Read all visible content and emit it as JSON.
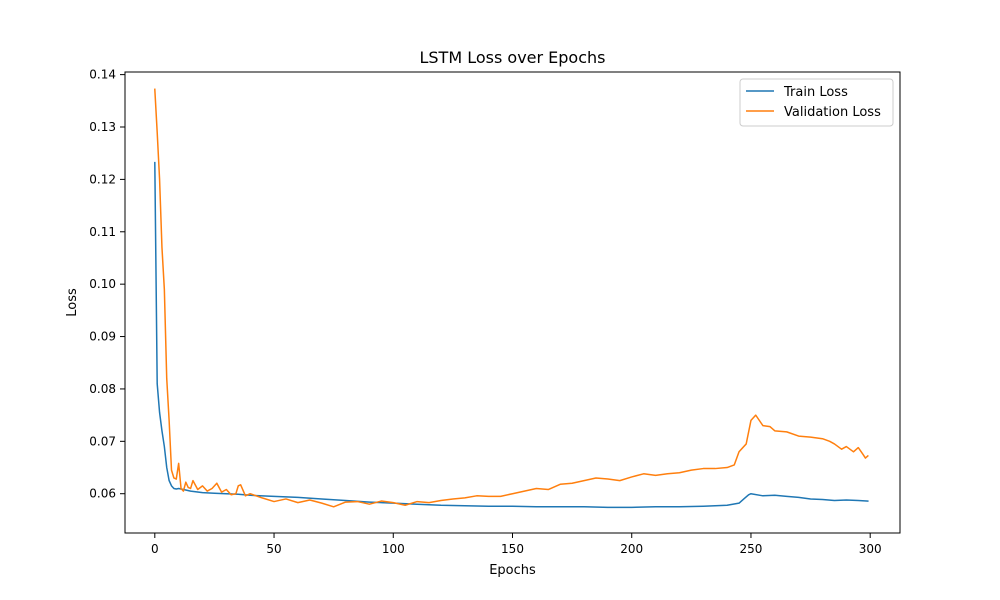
{
  "chart_data": {
    "type": "line",
    "title": "LSTM Loss over Epochs",
    "xlabel": "Epochs",
    "ylabel": "Loss",
    "xlim": [
      -12.5,
      312.5
    ],
    "ylim": [
      0.0525,
      0.1405
    ],
    "xticks": [
      0,
      50,
      100,
      150,
      200,
      250,
      300
    ],
    "yticks": [
      0.06,
      0.07,
      0.08,
      0.09,
      0.1,
      0.11,
      0.12,
      0.13,
      0.14
    ],
    "ytick_labels": [
      "0.06",
      "0.07",
      "0.08",
      "0.09",
      "0.10",
      "0.11",
      "0.12",
      "0.13",
      "0.14"
    ],
    "grid": false,
    "legend_position": "upper right",
    "series": [
      {
        "name": "Train Loss",
        "color": "#1f77b4",
        "x": [
          0,
          1,
          2,
          3,
          4,
          5,
          6,
          7,
          8,
          9,
          10,
          12,
          15,
          20,
          25,
          30,
          35,
          40,
          50,
          60,
          70,
          80,
          90,
          100,
          110,
          120,
          130,
          140,
          150,
          160,
          170,
          180,
          190,
          200,
          210,
          220,
          230,
          240,
          245,
          247,
          249,
          250,
          255,
          260,
          265,
          270,
          275,
          280,
          285,
          290,
          295,
          299
        ],
        "y": [
          0.1232,
          0.081,
          0.0755,
          0.072,
          0.069,
          0.065,
          0.0625,
          0.0615,
          0.061,
          0.0609,
          0.061,
          0.0608,
          0.0605,
          0.0602,
          0.0601,
          0.06,
          0.0599,
          0.0597,
          0.0595,
          0.0593,
          0.059,
          0.0587,
          0.0584,
          0.0582,
          0.058,
          0.0578,
          0.0577,
          0.0576,
          0.0576,
          0.0575,
          0.0575,
          0.0575,
          0.0574,
          0.0574,
          0.0575,
          0.0575,
          0.0576,
          0.0578,
          0.0582,
          0.059,
          0.0598,
          0.06,
          0.0596,
          0.0597,
          0.0595,
          0.0593,
          0.059,
          0.0589,
          0.0587,
          0.0588,
          0.0587,
          0.0586
        ]
      },
      {
        "name": "Validation Loss",
        "color": "#ff7f0e",
        "x": [
          0,
          1,
          2,
          3,
          4,
          5,
          6,
          7,
          8,
          9,
          10,
          11,
          12,
          13,
          14,
          15,
          16,
          18,
          20,
          22,
          24,
          26,
          28,
          30,
          32,
          34,
          35,
          36,
          38,
          40,
          45,
          50,
          55,
          60,
          65,
          70,
          75,
          80,
          85,
          90,
          95,
          100,
          105,
          110,
          115,
          120,
          125,
          130,
          135,
          140,
          145,
          150,
          155,
          160,
          165,
          170,
          175,
          180,
          185,
          190,
          195,
          200,
          205,
          210,
          215,
          220,
          225,
          230,
          235,
          240,
          243,
          245,
          248,
          250,
          252,
          255,
          258,
          260,
          265,
          270,
          275,
          280,
          283,
          285,
          288,
          290,
          293,
          295,
          297,
          298,
          299
        ],
        "y": [
          0.1372,
          0.129,
          0.12,
          0.107,
          0.099,
          0.082,
          0.074,
          0.0645,
          0.063,
          0.0628,
          0.0658,
          0.061,
          0.0605,
          0.0622,
          0.0612,
          0.061,
          0.0625,
          0.0608,
          0.0615,
          0.0605,
          0.061,
          0.062,
          0.0603,
          0.0608,
          0.0598,
          0.06,
          0.0615,
          0.0617,
          0.0596,
          0.06,
          0.0592,
          0.0585,
          0.059,
          0.0583,
          0.0588,
          0.0582,
          0.0575,
          0.0584,
          0.0585,
          0.058,
          0.0586,
          0.0583,
          0.0578,
          0.0585,
          0.0583,
          0.0587,
          0.059,
          0.0592,
          0.0596,
          0.0595,
          0.0595,
          0.06,
          0.0605,
          0.061,
          0.0608,
          0.0618,
          0.062,
          0.0625,
          0.063,
          0.0628,
          0.0625,
          0.0632,
          0.0638,
          0.0635,
          0.0638,
          0.064,
          0.0645,
          0.0648,
          0.0648,
          0.065,
          0.0655,
          0.068,
          0.0695,
          0.074,
          0.075,
          0.073,
          0.0728,
          0.072,
          0.0718,
          0.071,
          0.0708,
          0.0705,
          0.07,
          0.0695,
          0.0685,
          0.069,
          0.068,
          0.0688,
          0.0675,
          0.0668,
          0.0672
        ]
      }
    ]
  }
}
